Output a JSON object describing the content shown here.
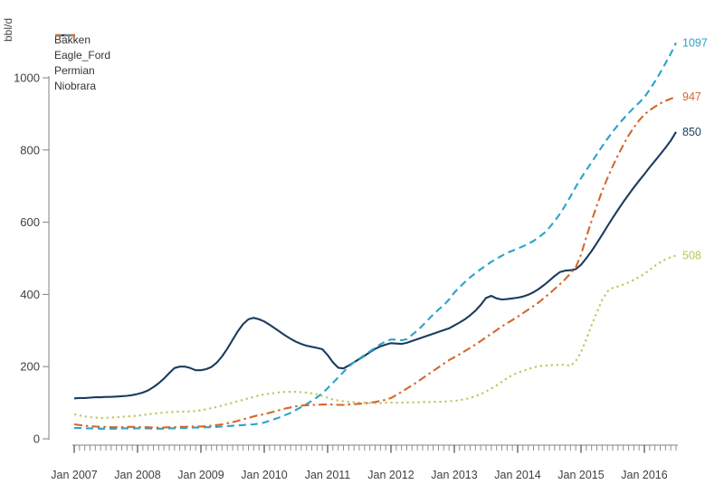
{
  "chart_data": {
    "type": "line",
    "title": "",
    "ylabel": "bbl/d",
    "xlabel": "",
    "x_interval": "monthly",
    "x_start": "Jan 2007",
    "x_end": "Jul 2016",
    "x_tick_labels": [
      "Jan 2007",
      "Jan 2008",
      "Jan 2009",
      "Jan 2010",
      "Jan 2011",
      "Jan 2012",
      "Jan 2013",
      "Jan 2014",
      "Jan 2015",
      "Jan 2016"
    ],
    "ylim": [
      0,
      1000
    ],
    "yticks": [
      0,
      200,
      400,
      600,
      800,
      1000
    ],
    "grid": "off",
    "legend_position": "top-left",
    "series": [
      {
        "name": "Bakken",
        "color": "#1c3c5e",
        "line_style": "solid",
        "end_label": "850",
        "values": [
          112,
          113,
          113,
          114,
          115,
          115,
          116,
          116,
          117,
          118,
          119,
          121,
          124,
          128,
          134,
          143,
          154,
          167,
          182,
          196,
          200,
          200,
          196,
          190,
          190,
          193,
          199,
          211,
          228,
          250,
          274,
          298,
          318,
          331,
          335,
          331,
          325,
          316,
          306,
          296,
          286,
          277,
          269,
          263,
          258,
          255,
          252,
          248,
          232,
          212,
          197,
          195,
          203,
          212,
          221,
          230,
          240,
          249,
          256,
          261,
          265,
          264,
          263,
          266,
          271,
          276,
          281,
          286,
          291,
          296,
          301,
          306,
          314,
          322,
          331,
          342,
          355,
          371,
          390,
          396,
          389,
          386,
          387,
          389,
          391,
          394,
          399,
          406,
          415,
          426,
          438,
          451,
          462,
          466,
          467,
          470,
          482,
          500,
          520,
          542,
          565,
          589,
          612,
          634,
          656,
          676,
          696,
          715,
          733,
          752,
          770,
          788,
          806,
          826,
          850
        ]
      },
      {
        "name": "Eagle_Ford",
        "color": "#2aa3c9",
        "line_style": "dashed",
        "end_label": "1097",
        "values": [
          30,
          30,
          29,
          29,
          29,
          28,
          28,
          28,
          28,
          29,
          29,
          29,
          29,
          29,
          29,
          28,
          28,
          28,
          29,
          29,
          30,
          30,
          31,
          31,
          31,
          32,
          32,
          33,
          34,
          35,
          36,
          37,
          38,
          39,
          40,
          42,
          45,
          50,
          55,
          60,
          66,
          72,
          80,
          88,
          96,
          105,
          115,
          126,
          140,
          155,
          170,
          185,
          200,
          212,
          222,
          232,
          242,
          252,
          262,
          270,
          275,
          275,
          273,
          276,
          288,
          300,
          314,
          329,
          344,
          358,
          370,
          386,
          405,
          420,
          434,
          447,
          459,
          470,
          480,
          490,
          499,
          507,
          515,
          521,
          527,
          533,
          540,
          548,
          558,
          570,
          585,
          603,
          623,
          646,
          671,
          698,
          722,
          744,
          766,
          788,
          810,
          831,
          851,
          869,
          886,
          902,
          917,
          931,
          946,
          967,
          990,
          1014,
          1040,
          1067,
          1097
        ]
      },
      {
        "name": "Permian",
        "color": "#bec45c",
        "line_style": "dotted",
        "end_label": "508",
        "values": [
          68,
          65,
          62,
          60,
          59,
          58,
          58,
          59,
          60,
          61,
          62,
          63,
          64,
          66,
          68,
          70,
          71,
          73,
          74,
          75,
          75,
          76,
          76,
          77,
          79,
          82,
          85,
          88,
          92,
          96,
          100,
          104,
          108,
          112,
          116,
          120,
          123,
          125,
          127,
          129,
          130,
          130,
          130,
          129,
          128,
          126,
          123,
          119,
          114,
          109,
          106,
          104,
          102,
          101,
          100,
          100,
          99,
          99,
          99,
          100,
          100,
          100,
          100,
          101,
          101,
          101,
          102,
          102,
          102,
          103,
          103,
          104,
          105,
          107,
          110,
          113,
          118,
          124,
          131,
          139,
          148,
          158,
          168,
          177,
          183,
          188,
          193,
          198,
          201,
          203,
          204,
          204,
          205,
          205,
          202,
          215,
          240,
          275,
          315,
          350,
          385,
          408,
          418,
          422,
          427,
          433,
          440,
          448,
          457,
          468,
          479,
          489,
          497,
          503,
          508
        ]
      },
      {
        "name": "Niobrara",
        "color": "#d4682e",
        "line_style": "dashdot",
        "end_label": "947",
        "values": [
          40,
          38,
          36,
          35,
          34,
          33,
          33,
          32,
          32,
          32,
          33,
          33,
          33,
          32,
          32,
          31,
          31,
          31,
          32,
          32,
          33,
          33,
          34,
          34,
          34,
          35,
          36,
          38,
          40,
          43,
          46,
          50,
          54,
          58,
          62,
          66,
          68,
          72,
          76,
          80,
          84,
          87,
          90,
          92,
          93,
          94,
          94,
          95,
          95,
          95,
          94,
          94,
          95,
          96,
          97,
          98,
          100,
          102,
          105,
          108,
          113,
          121,
          130,
          139,
          148,
          158,
          168,
          178,
          188,
          198,
          208,
          218,
          226,
          234,
          243,
          252,
          261,
          271,
          281,
          291,
          301,
          311,
          320,
          329,
          338,
          348,
          358,
          368,
          378,
          390,
          402,
          415,
          428,
          442,
          458,
          475,
          510,
          558,
          604,
          646,
          686,
          722,
          755,
          785,
          814,
          840,
          862,
          882,
          898,
          910,
          920,
          929,
          936,
          942,
          947
        ]
      }
    ]
  }
}
